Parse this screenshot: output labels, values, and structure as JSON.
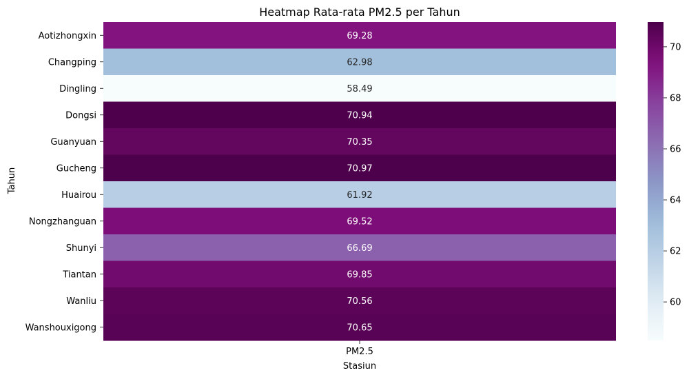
{
  "chart_data": {
    "type": "heatmap",
    "title": "Heatmap Rata-rata PM2.5 per Tahun",
    "xlabel": "Stasiun",
    "ylabel": "Tahun",
    "columns": [
      "PM2.5"
    ],
    "rows": [
      "Aotizhongxin",
      "Changping",
      "Dingling",
      "Dongsi",
      "Guanyuan",
      "Gucheng",
      "Huairou",
      "Nongzhanguan",
      "Shunyi",
      "Tiantan",
      "Wanliu",
      "Wanshouxigong"
    ],
    "values": [
      [
        69.28
      ],
      [
        62.98
      ],
      [
        58.49
      ],
      [
        70.94
      ],
      [
        70.35
      ],
      [
        70.97
      ],
      [
        61.92
      ],
      [
        69.52
      ],
      [
        66.69
      ],
      [
        69.85
      ],
      [
        70.56
      ],
      [
        70.65
      ]
    ],
    "value_labels": [
      "69.28",
      "62.98",
      "58.49",
      "70.94",
      "70.35",
      "70.97",
      "61.92",
      "69.52",
      "66.69",
      "69.85",
      "70.56",
      "70.65"
    ],
    "colormap": "BuPu",
    "colorbar": {
      "range": [
        58.49,
        70.97
      ],
      "ticks": [
        60,
        62,
        64,
        66,
        68,
        70
      ],
      "tick_labels": [
        "60",
        "62",
        "64",
        "66",
        "68",
        "70"
      ]
    },
    "annotations": true
  }
}
